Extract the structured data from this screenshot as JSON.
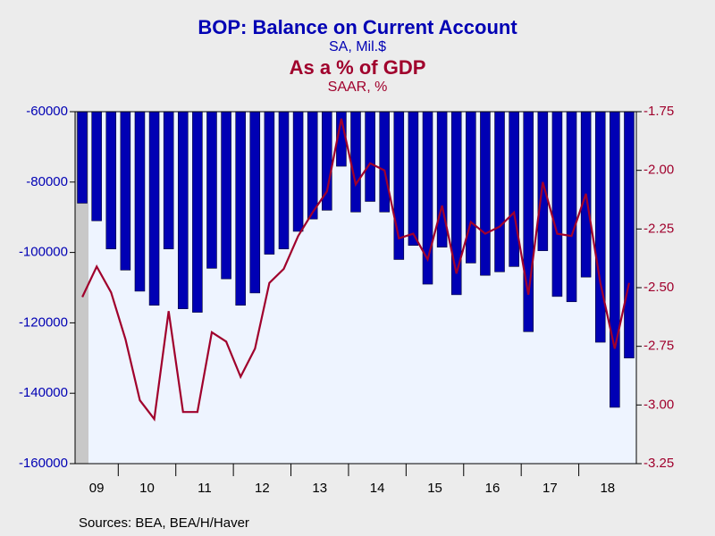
{
  "chart_data": {
    "type": "bar_line",
    "title": "BOP: Balance on Current Account",
    "subtitle": "SA, Mil.$",
    "title2": "As a % of GDP",
    "subtitle2": "SAAR, %",
    "source": "Sources:  BEA, BEA/H/Haver",
    "year_labels": [
      "09",
      "10",
      "11",
      "12",
      "13",
      "14",
      "15",
      "16",
      "17",
      "18"
    ],
    "categories": [
      null,
      null,
      null,
      null,
      null,
      null,
      null,
      null,
      null,
      null,
      null,
      null,
      null,
      null,
      null,
      null,
      null,
      null,
      null,
      null,
      null,
      null,
      null,
      null,
      null,
      null,
      null,
      null,
      null,
      null,
      null,
      null,
      null,
      null,
      null,
      null,
      null,
      null,
      null
    ],
    "series": [
      {
        "name": "BOP: Balance on Current Account",
        "color": "#0000b4",
        "axis": "y",
        "values": [
          -86000,
          -91000,
          -99000,
          -105000,
          -111000,
          -115000,
          -99000,
          -116000,
          -117000,
          -104500,
          -107500,
          -115000,
          -111500,
          -100500,
          -99000,
          -94000,
          -90500,
          -88000,
          -75500,
          -88500,
          -85500,
          -88500,
          -102000,
          -98000,
          -109000,
          -98500,
          -112000,
          -103000,
          -106500,
          -105500,
          -104000,
          -122500,
          -99500,
          -112500,
          -114000,
          -107000,
          -125500,
          -144000,
          -130000
        ]
      },
      {
        "name": "As a % of GDP",
        "color": "#a0002c",
        "axis": "y2",
        "values": [
          -2.54,
          -2.41,
          -2.52,
          -2.72,
          -2.98,
          -3.06,
          -2.6,
          -3.03,
          -3.03,
          -2.69,
          -2.73,
          -2.88,
          -2.76,
          -2.48,
          -2.42,
          -2.28,
          -2.18,
          -2.09,
          -1.78,
          -2.06,
          -1.97,
          -2.0,
          -2.29,
          -2.27,
          -2.38,
          -2.15,
          -2.44,
          -2.22,
          -2.27,
          -2.24,
          -2.18,
          -2.53,
          -2.05,
          -2.27,
          -2.28,
          -2.1,
          -2.48,
          -2.76,
          -2.48
        ]
      }
    ],
    "ylim": [
      -160000,
      -60000
    ],
    "yticks": [
      -60000,
      -80000,
      -100000,
      -120000,
      -140000,
      -160000
    ],
    "y2lim": [
      -3.25,
      -1.75
    ],
    "y2ticks": [
      -1.75,
      {
        "value": -2,
        "label": "-2.00"
      },
      -2.25,
      {
        "value": -2.5,
        "label": "-2.50"
      },
      -2.75,
      {
        "value": -3,
        "label": "-3.00"
      },
      -3.25
    ]
  }
}
